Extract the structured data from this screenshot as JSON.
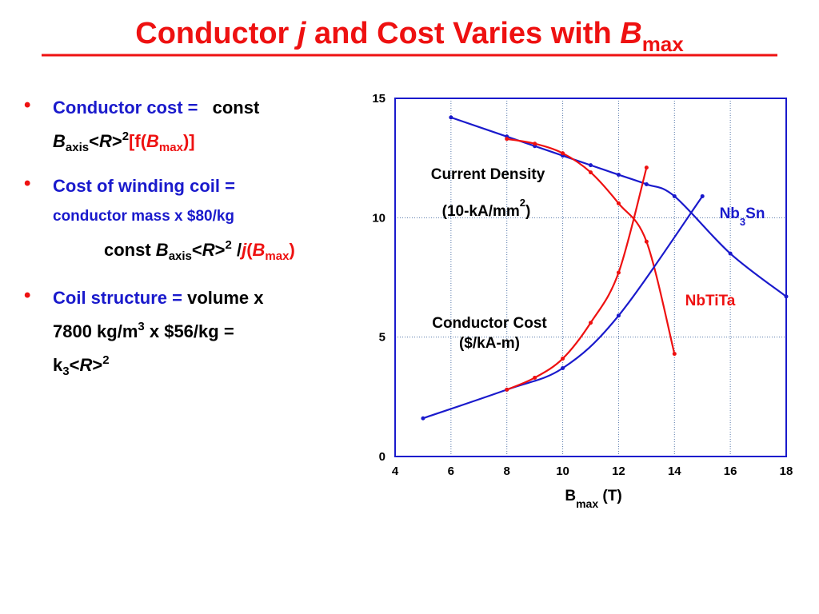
{
  "title": [
    "Conductor ",
    "j",
    " and Cost Varies with ",
    "B",
    "max"
  ],
  "bullets": [
    {
      "lines": [
        [
          "Conductor cost = ",
          "const"
        ],
        [
          "B",
          "axis",
          "<",
          "R",
          ">",
          "2",
          "[f(",
          "B",
          "max",
          ")]"
        ]
      ]
    },
    {
      "lines": [
        [
          "Cost of winding coil ="
        ],
        [
          "conductor mass x $80/kg"
        ],
        [
          "const ",
          "B",
          "axis",
          "<",
          "R",
          ">",
          "2",
          " /",
          "j",
          "(",
          "B",
          "max",
          ")"
        ]
      ]
    },
    {
      "lines": [
        [
          "Coil structure = ",
          "volume x"
        ],
        [
          "7800 kg/m",
          "3",
          " x $56/kg ="
        ],
        [
          "k",
          "3",
          "<",
          "R",
          ">",
          "2"
        ]
      ]
    }
  ],
  "chart_data": {
    "type": "line",
    "x_label": [
      "B",
      "max",
      " (T)"
    ],
    "xlim": [
      4,
      18
    ],
    "xticks": [
      4,
      6,
      8,
      10,
      12,
      14,
      16,
      18
    ],
    "ylim": [
      0,
      15
    ],
    "yticks": [
      0,
      5,
      10,
      15
    ],
    "grid": true,
    "series": [
      {
        "color": "#1a1acc",
        "x": [
          6,
          8,
          9,
          10,
          11,
          12,
          13,
          14,
          16,
          18
        ],
        "values": [
          14.2,
          13.4,
          13.0,
          12.6,
          12.2,
          11.8,
          11.4,
          10.9,
          8.5,
          6.7
        ]
      },
      {
        "color": "#ee1111",
        "x": [
          8,
          9,
          10,
          11,
          12,
          13,
          14
        ],
        "values": [
          13.3,
          13.1,
          12.7,
          11.9,
          10.6,
          9.0,
          4.3
        ]
      },
      {
        "color": "#1a1acc",
        "x": [
          5,
          8,
          10,
          12,
          15
        ],
        "values": [
          1.6,
          2.8,
          3.7,
          5.9,
          10.9
        ]
      },
      {
        "color": "#ee1111",
        "x": [
          8,
          9,
          10,
          11,
          12,
          13
        ],
        "values": [
          2.8,
          3.3,
          4.1,
          5.6,
          7.7,
          12.1
        ]
      }
    ],
    "annotations": [
      [
        "Current Density"
      ],
      [
        "(10-kA/mm",
        "2",
        ")"
      ],
      [
        "Conductor Cost"
      ],
      [
        "($/kA-m)"
      ],
      [
        "Nb",
        "3",
        "Sn"
      ],
      [
        "NbTiTa"
      ]
    ]
  }
}
